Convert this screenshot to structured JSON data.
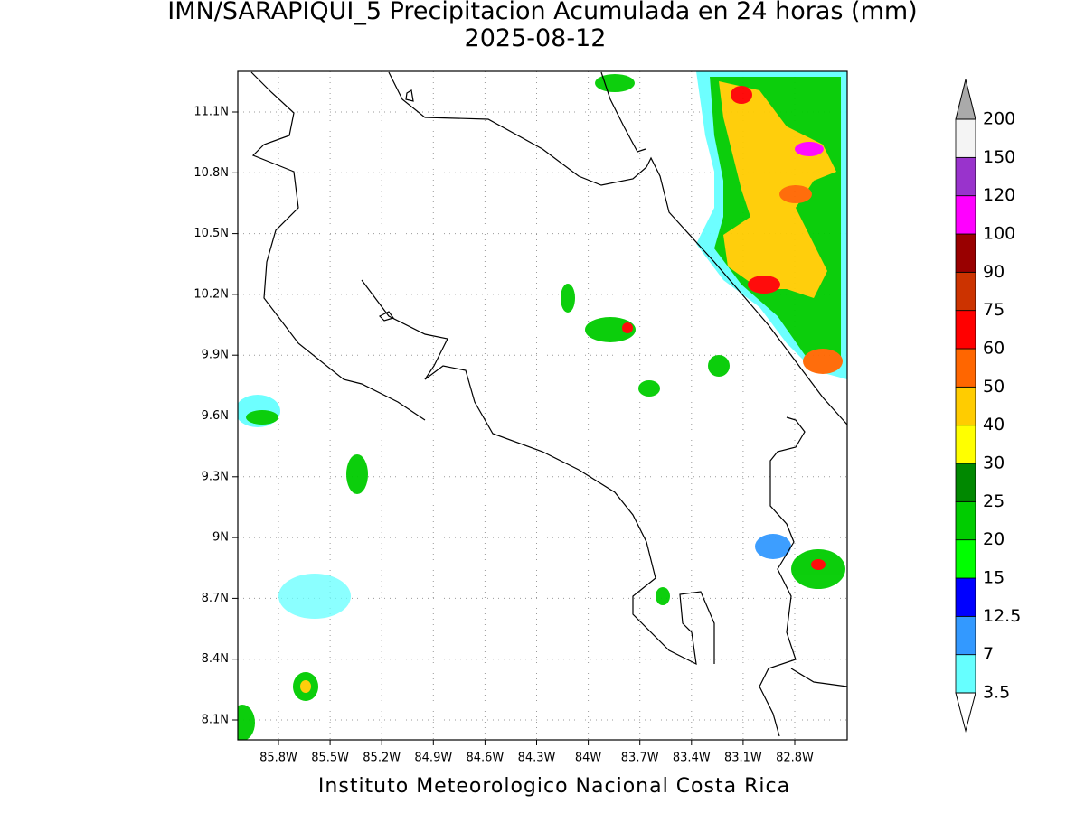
{
  "title": "IMN/SARAPIQUI_5 Precipitacion Acumulada en 24 horas (mm)",
  "subtitle": "2025-08-12",
  "footer": "Instituto Meteorologico Nacional Costa Rica",
  "map": {
    "lon_ticks": [
      "85.8W",
      "85.5W",
      "85.2W",
      "84.9W",
      "84.6W",
      "84.3W",
      "84W",
      "83.7W",
      "83.4W",
      "83.1W",
      "82.8W"
    ],
    "lat_ticks": [
      "11.1N",
      "10.8N",
      "10.5N",
      "10.2N",
      "9.9N",
      "9.6N",
      "9.3N",
      "9N",
      "8.7N",
      "8.4N",
      "8.1N"
    ]
  },
  "colorbar": {
    "levels": [
      3.5,
      7,
      12.5,
      15,
      20,
      25,
      30,
      40,
      50,
      60,
      75,
      90,
      100,
      120,
      150,
      200
    ],
    "colors": [
      "#66ffff",
      "#3399ff",
      "#0000ff",
      "#00ff00",
      "#00cc00",
      "#008800",
      "#ffff00",
      "#ffcc00",
      "#ff6600",
      "#ff0000",
      "#cc3300",
      "#990000",
      "#ff00ff",
      "#9933cc",
      "#f4f4f4"
    ],
    "under_color": "#ffffff",
    "over_color": "#aaaaaa"
  }
}
